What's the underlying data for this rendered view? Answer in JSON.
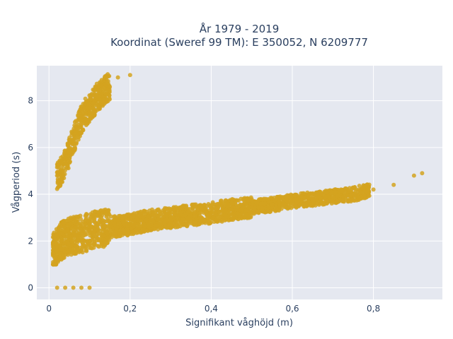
{
  "chart_data": {
    "type": "scatter",
    "title": "År 1979 - 2019",
    "subtitle": "Koordinat (Sweref 99 TM): E 350052, N 6209777",
    "xlabel": "Signifikant våghöjd (m)",
    "ylabel": "Vågperiod (s)",
    "xlim": [
      -0.03,
      0.97
    ],
    "ylim": [
      -0.5,
      9.5
    ],
    "x_ticks": [
      0,
      0.2,
      0.4,
      0.6,
      0.8
    ],
    "x_tick_labels": [
      "0",
      "0,2",
      "0,4",
      "0,6",
      "0,8"
    ],
    "y_ticks": [
      0,
      2,
      4,
      6,
      8
    ],
    "y_tick_labels": [
      "0",
      "2",
      "4",
      "6",
      "8"
    ],
    "grid": true,
    "marker_color": "#d4a320",
    "plot_bgcolor": "#e5e8f0",
    "series": [
      {
        "x": [
          0.01,
          0.02,
          0.03,
          0.05,
          0.08,
          0.1,
          0.12,
          0.15,
          0.2,
          0.25,
          0.3,
          0.35,
          0.4,
          0.45,
          0.5,
          0.55,
          0.6,
          0.65,
          0.7,
          0.75,
          0.8,
          0.85,
          0.9,
          0.92,
          0.02,
          0.03,
          0.04,
          0.05,
          0.06,
          0.07,
          0.08,
          0.09,
          0.1,
          0.11,
          0.12,
          0.13,
          0.14,
          0.15,
          0.17,
          0.2,
          0.02,
          0.04,
          0.06,
          0.08,
          0.1
        ],
        "y": [
          1.5,
          1.8,
          2.0,
          2.2,
          2.3,
          2.4,
          2.5,
          2.6,
          2.7,
          2.9,
          3.0,
          3.1,
          3.2,
          3.35,
          3.45,
          3.55,
          3.7,
          3.8,
          3.9,
          4.0,
          4.2,
          4.4,
          4.8,
          4.9,
          4.8,
          5.0,
          5.3,
          5.8,
          6.3,
          6.8,
          7.2,
          7.5,
          7.7,
          7.9,
          8.2,
          8.3,
          8.5,
          8.6,
          9.0,
          9.1,
          0.0,
          0.0,
          0.0,
          0.0,
          0.0
        ]
      }
    ]
  }
}
